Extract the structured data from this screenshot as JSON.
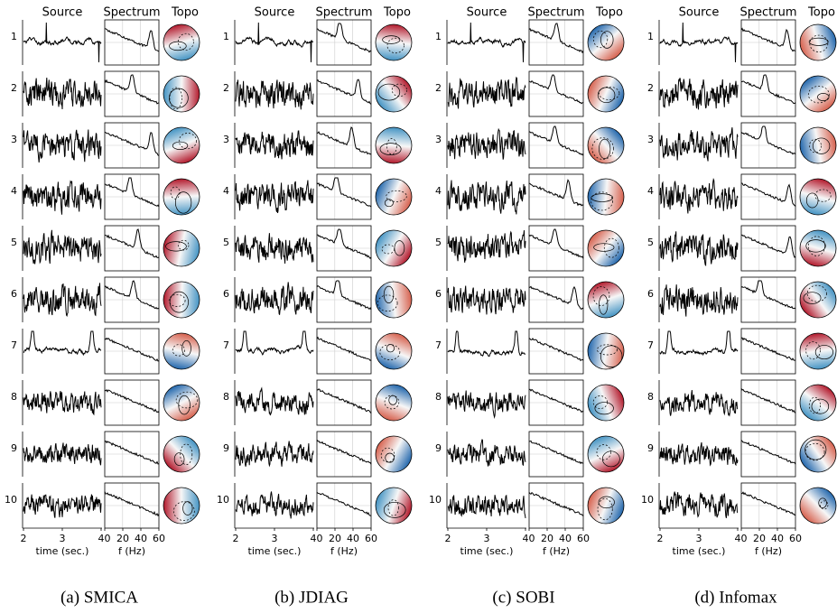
{
  "columns": [
    "Source",
    "Spectrum",
    "Topo"
  ],
  "rows": [
    "1",
    "2",
    "3",
    "4",
    "5",
    "6",
    "7",
    "8",
    "9",
    "10"
  ],
  "time_axis": {
    "ticks": [
      "2",
      "3",
      "4"
    ],
    "label": "time (sec.)"
  },
  "freq_axis": {
    "ticks": [
      "0",
      "20",
      "40",
      "60"
    ],
    "label": "f (Hz)"
  },
  "panels": [
    {
      "caption": "(a) SMICA"
    },
    {
      "caption": "(b) JDIAG"
    },
    {
      "caption": "(c) SOBI"
    },
    {
      "caption": "(d) Infomax"
    }
  ]
}
